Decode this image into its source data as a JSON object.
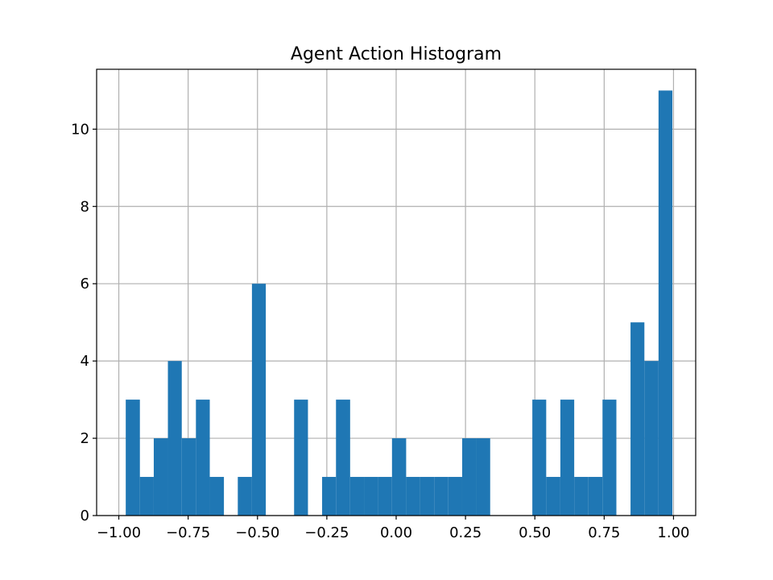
{
  "chart_data": {
    "type": "bar",
    "title": "Agent Action Histogram",
    "xlabel": "",
    "ylabel": "",
    "xlim": [
      -1.08,
      1.08
    ],
    "ylim": [
      0,
      11.55
    ],
    "grid": true,
    "bar_color": "#1f77b4",
    "grid_color": "#b0b0b0",
    "x_ticks": [
      {
        "value": -1.0,
        "label": "−1.00"
      },
      {
        "value": -0.75,
        "label": "−0.75"
      },
      {
        "value": -0.5,
        "label": "−0.50"
      },
      {
        "value": -0.25,
        "label": "−0.25"
      },
      {
        "value": 0.0,
        "label": "0.00"
      },
      {
        "value": 0.25,
        "label": "0.25"
      },
      {
        "value": 0.5,
        "label": "0.50"
      },
      {
        "value": 0.75,
        "label": "0.75"
      },
      {
        "value": 1.0,
        "label": "1.00"
      }
    ],
    "y_ticks": [
      {
        "value": 0,
        "label": "0"
      },
      {
        "value": 2,
        "label": "2"
      },
      {
        "value": 4,
        "label": "4"
      },
      {
        "value": 6,
        "label": "6"
      },
      {
        "value": 8,
        "label": "8"
      },
      {
        "value": 10,
        "label": "10"
      }
    ],
    "bin_edges": [
      -0.975,
      -0.924,
      -0.874,
      -0.823,
      -0.773,
      -0.722,
      -0.672,
      -0.621,
      -0.571,
      -0.52,
      -0.47,
      -0.419,
      -0.368,
      -0.318,
      -0.267,
      -0.217,
      -0.166,
      -0.116,
      -0.065,
      -0.015,
      0.036,
      0.086,
      0.137,
      0.188,
      0.238,
      0.289,
      0.339,
      0.39,
      0.44,
      0.491,
      0.541,
      0.592,
      0.642,
      0.693,
      0.744,
      0.794,
      0.845,
      0.895,
      0.946,
      0.996
    ],
    "counts": [
      3,
      1,
      2,
      4,
      2,
      3,
      1,
      0,
      1,
      6,
      0,
      0,
      3,
      0,
      1,
      3,
      1,
      1,
      1,
      2,
      1,
      1,
      1,
      1,
      2,
      2,
      0,
      0,
      0,
      3,
      1,
      3,
      1,
      1,
      3,
      0,
      5,
      4,
      11
    ]
  }
}
